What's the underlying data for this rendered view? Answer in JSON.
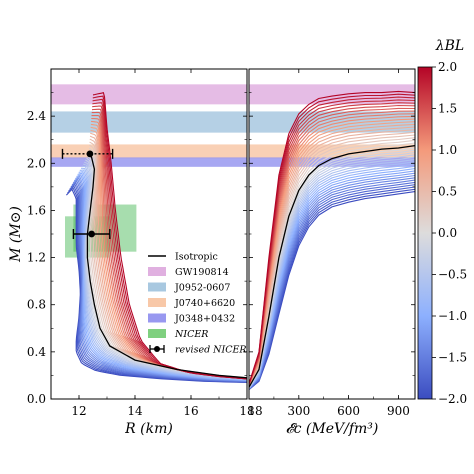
{
  "chart_data": {
    "type": "line",
    "colorbar": {
      "label": "λBL",
      "range": [
        -2.0,
        2.0
      ],
      "ticks": [
        "2.0",
        "1.5",
        "1.0",
        "0.5",
        "0.0",
        "−0.5",
        "−1.0",
        "−1.5",
        "−2.0"
      ],
      "tick_values": [
        2.0,
        1.5,
        1.0,
        0.5,
        0.0,
        -0.5,
        -1.0,
        -1.5,
        -2.0
      ],
      "colormap": "coolwarm",
      "n_curves": 41
    },
    "ylabel": "M (M⊙)",
    "ylim": [
      0.0,
      2.8
    ],
    "yticks": [
      "0.0",
      "0.4",
      "0.8",
      "1.2",
      "1.6",
      "2.0",
      "2.4"
    ],
    "ytick_values": [
      0.0,
      0.4,
      0.8,
      1.2,
      1.6,
      2.0,
      2.4
    ],
    "panels": [
      {
        "name": "mass-radius",
        "xlabel": "R (km)",
        "xlim": [
          11.0,
          18.0
        ],
        "xticks": [
          "12",
          "14",
          "16",
          "18"
        ],
        "xtick_values": [
          12,
          14,
          16,
          18
        ],
        "isotropic_curve": {
          "R": [
            12.35,
            12.45,
            12.55,
            12.5,
            12.4,
            12.3,
            12.3,
            12.4,
            12.55,
            12.75,
            13.1,
            14.0,
            15.5,
            17.0,
            18.0
          ],
          "M": [
            2.08,
            2.05,
            1.95,
            1.8,
            1.6,
            1.4,
            1.2,
            1.0,
            0.8,
            0.6,
            0.45,
            0.33,
            0.25,
            0.2,
            0.18
          ]
        },
        "envelope_max_lambda": {
          "R": [
            12.5,
            12.9,
            13.0,
            13.15,
            13.3,
            13.5,
            13.8,
            14.2,
            14.9,
            16.0,
            17.0,
            18.0
          ],
          "M": [
            2.58,
            2.6,
            2.3,
            2.0,
            1.6,
            1.2,
            0.8,
            0.5,
            0.3,
            0.22,
            0.19,
            0.17
          ]
        },
        "envelope_min_lambda": {
          "R": [
            11.55,
            11.75,
            11.9,
            11.9,
            11.9,
            12.0,
            12.05,
            12.0,
            11.9,
            11.9,
            12.1,
            12.6,
            13.5,
            15.0,
            16.5,
            18.0
          ],
          "M": [
            1.73,
            1.78,
            1.7,
            1.55,
            1.3,
            1.1,
            0.9,
            0.7,
            0.5,
            0.4,
            0.3,
            0.24,
            0.2,
            0.17,
            0.15,
            0.14
          ]
        },
        "nicer_region": {
          "boxes": [
            {
              "R": [
                11.5,
                13.1
              ],
              "M": [
                1.2,
                1.55
              ]
            },
            {
              "R": [
                11.8,
                14.05
              ],
              "M": [
                1.25,
                1.65
              ]
            }
          ],
          "color": "#3cb44b"
        },
        "points": [
          {
            "R": 12.39,
            "M": 2.08,
            "R_err_minus": 0.98,
            "R_err_plus": 0.81,
            "style": "dotted"
          },
          {
            "R": 12.45,
            "M": 1.4,
            "R_err_minus": 0.65,
            "R_err_plus": 0.65,
            "style": "solid"
          }
        ]
      },
      {
        "name": "mass-central-energy-density",
        "xlabel": "𝓔c (MeV/fm³)",
        "xlim": [
          0.0,
          1000.0
        ],
        "xticks": [
          "18",
          "300",
          "600",
          "900"
        ],
        "xtick_values": [
          18,
          300,
          600,
          900
        ],
        "isotropic_curve": {
          "E": [
            0,
            60,
            120,
            180,
            240,
            300,
            360,
            420,
            500,
            600,
            700,
            800,
            900,
            1000
          ],
          "M": [
            0.1,
            0.25,
            0.7,
            1.2,
            1.55,
            1.77,
            1.9,
            1.98,
            2.04,
            2.08,
            2.1,
            2.12,
            2.13,
            2.15
          ]
        },
        "envelope_max_lambda": {
          "E": [
            0,
            60,
            120,
            180,
            240,
            300,
            360,
            420,
            500,
            600,
            700,
            800,
            900,
            1000
          ],
          "M": [
            0.13,
            0.4,
            1.2,
            1.9,
            2.25,
            2.42,
            2.5,
            2.55,
            2.57,
            2.59,
            2.6,
            2.6,
            2.61,
            2.6
          ]
        },
        "envelope_min_lambda": {
          "E": [
            0,
            60,
            120,
            180,
            240,
            300,
            360,
            420,
            500,
            600,
            700,
            800,
            900,
            1000
          ],
          "M": [
            0.08,
            0.15,
            0.38,
            0.72,
            1.05,
            1.3,
            1.46,
            1.56,
            1.63,
            1.67,
            1.7,
            1.72,
            1.74,
            1.76
          ]
        }
      }
    ],
    "mass_bands": [
      {
        "name": "GW190814",
        "M": [
          2.5,
          2.67
        ],
        "color": "#e0b0e0"
      },
      {
        "name": "J0952-0607",
        "M": [
          2.26,
          2.44
        ],
        "color": "#a8c8e0"
      },
      {
        "name": "J0740+6620",
        "M": [
          2.04,
          2.16
        ],
        "color": "#f8c8a8"
      },
      {
        "name": "J0348+0432",
        "M": [
          1.97,
          2.05
        ],
        "color": "#9898f0"
      }
    ],
    "legend": {
      "placement": "lower-right of left panel",
      "entries": [
        {
          "label": "Isotropic",
          "kind": "line",
          "color": "#000000"
        },
        {
          "label": "GW190814",
          "kind": "patch",
          "color": "#e0b0e0"
        },
        {
          "label": "J0952-0607",
          "kind": "patch",
          "color": "#a8c8e0"
        },
        {
          "label": "J0740+6620",
          "kind": "patch",
          "color": "#f8c8a8"
        },
        {
          "label": "J0348+0432",
          "kind": "patch",
          "color": "#9898f0"
        },
        {
          "label": "NICER",
          "kind": "patch",
          "color": "#7fd07f",
          "italic": true
        },
        {
          "label": "revised NICER",
          "kind": "errorbar",
          "color": "#000000",
          "italic": true
        }
      ]
    }
  }
}
